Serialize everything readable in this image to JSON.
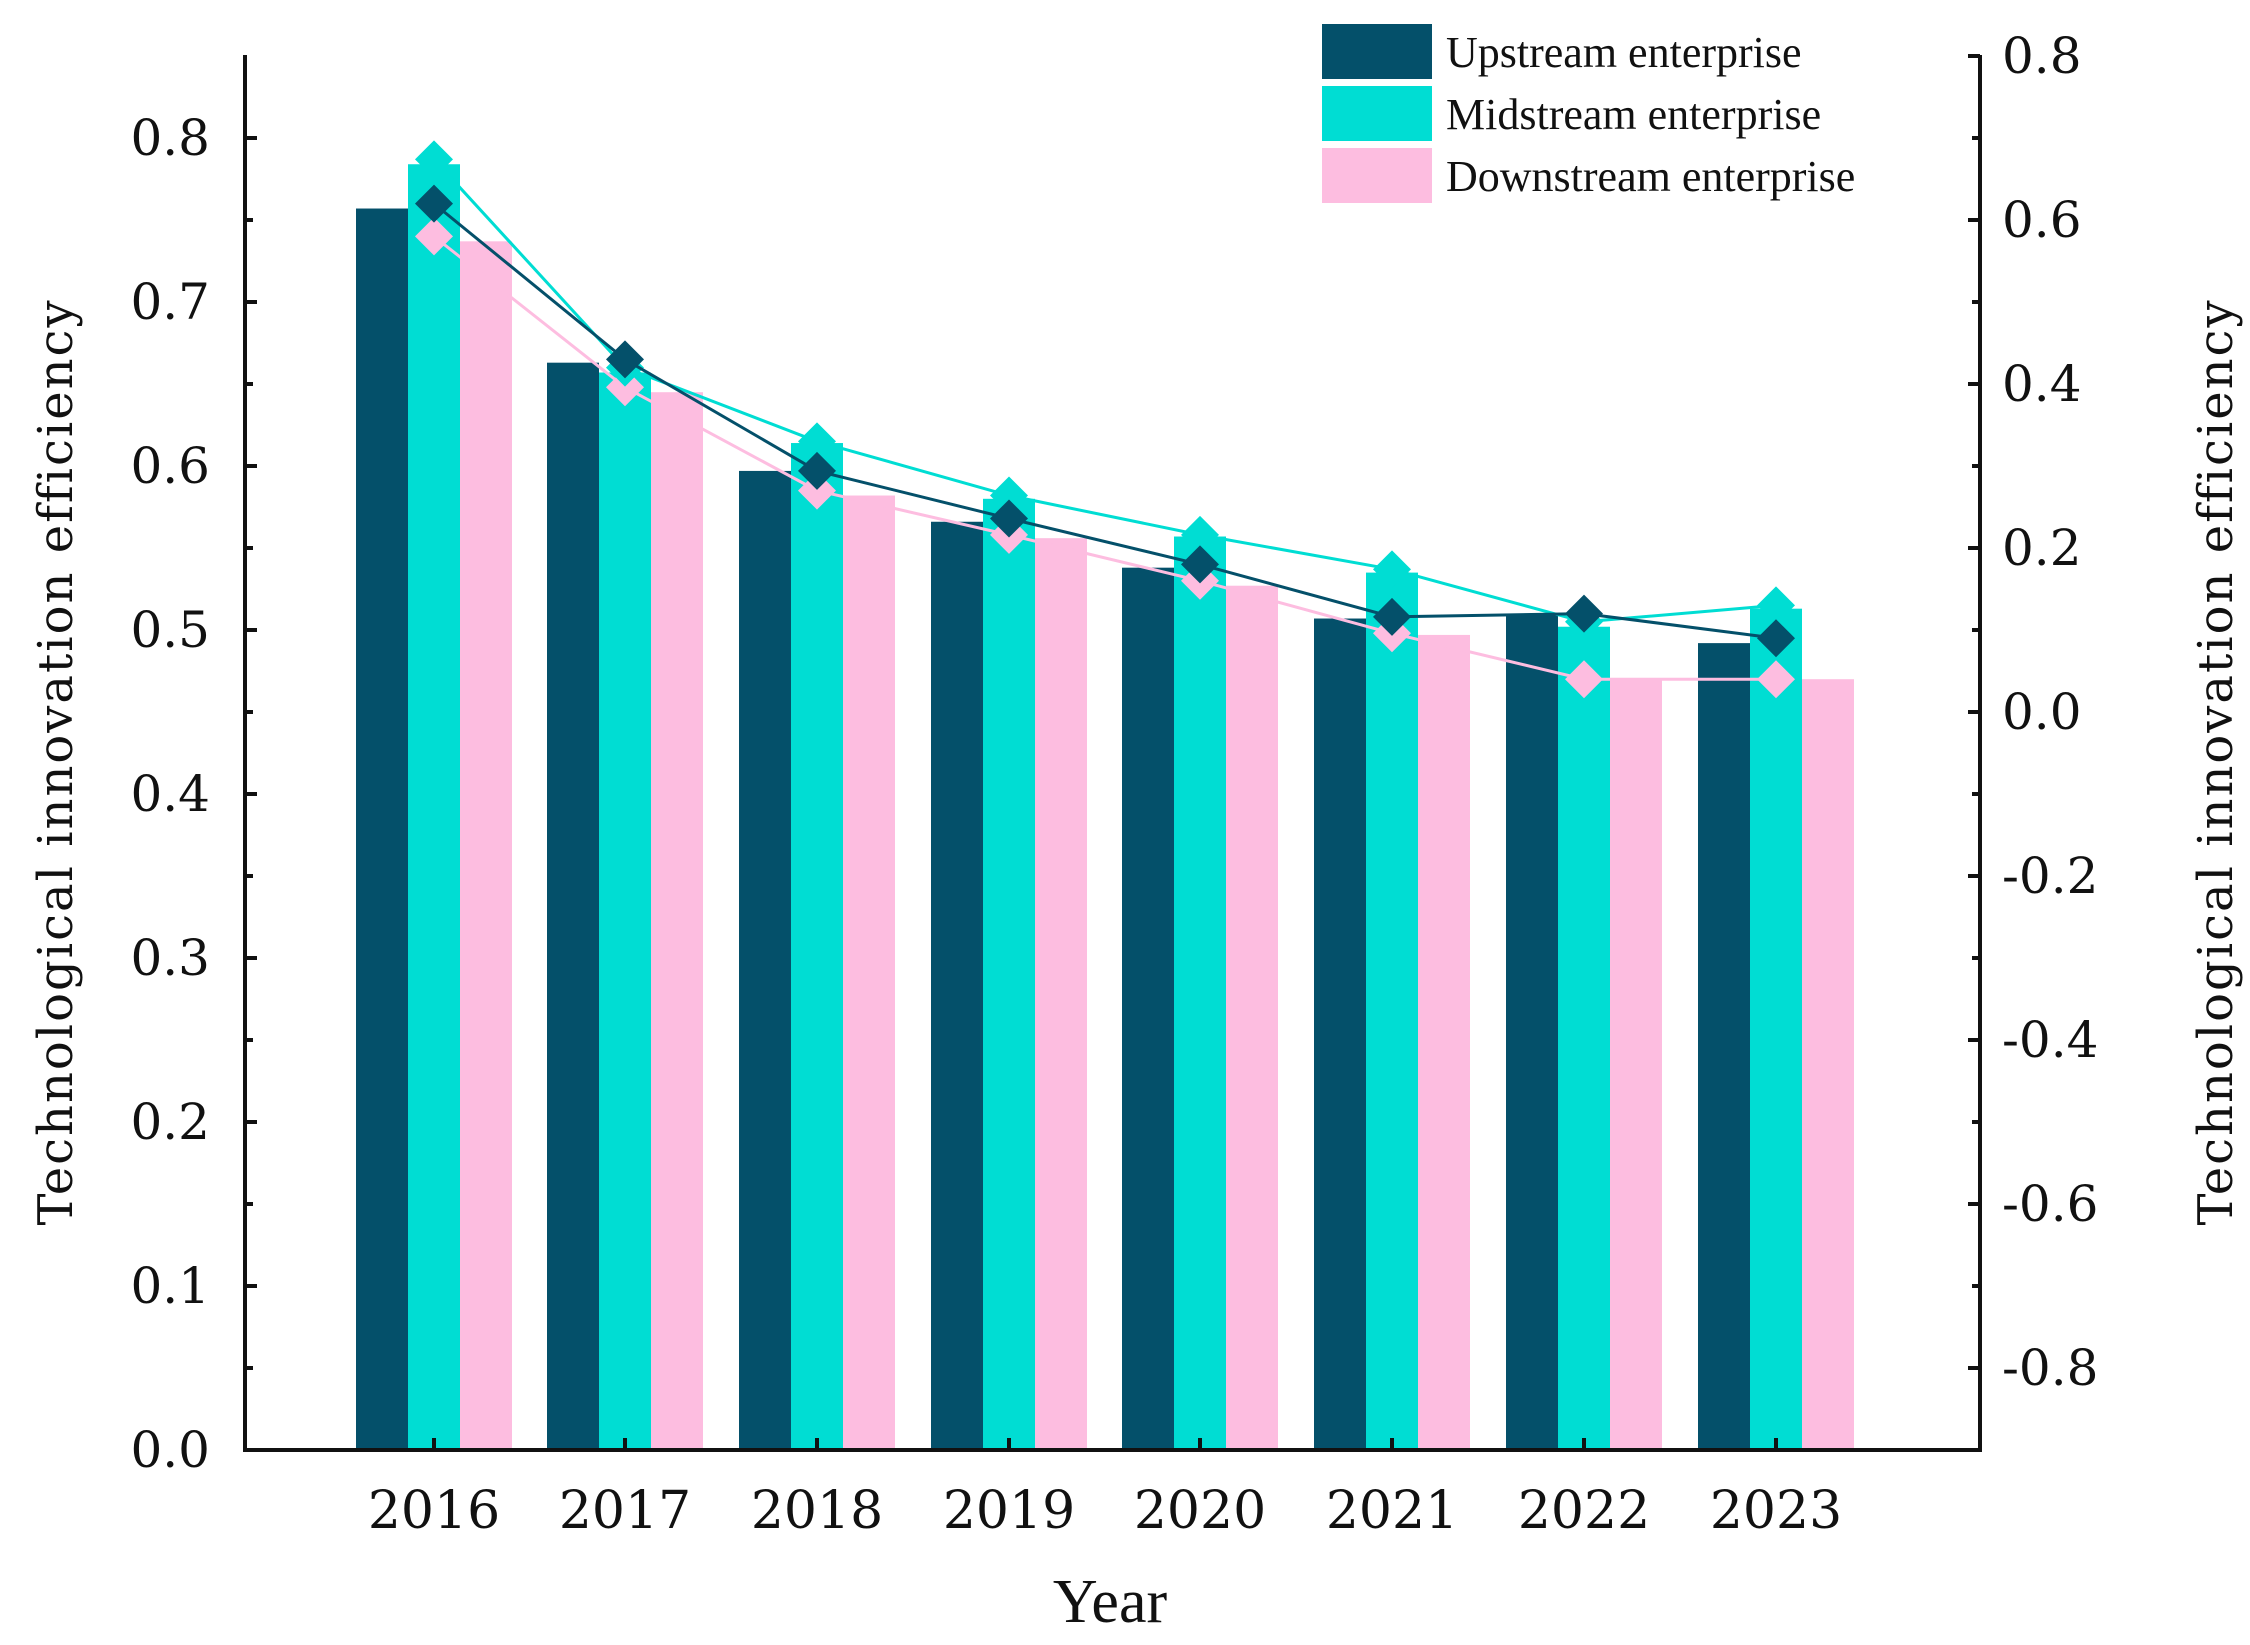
{
  "chart_data": {
    "type": "bar+line",
    "title": "",
    "xlabel": "Year",
    "ylabel_left": "Technological innovation efficiency",
    "ylabel_right": "Technological innovation efficiency",
    "categories": [
      "2016",
      "2017",
      "2018",
      "2019",
      "2020",
      "2021",
      "2022",
      "2023"
    ],
    "ylim_left": [
      0,
      0.85
    ],
    "yticks_left": [
      "0.0",
      "0.1",
      "0.2",
      "0.3",
      "0.4",
      "0.5",
      "0.6",
      "0.7",
      "0.8"
    ],
    "ylim_right": [
      -0.9,
      0.8
    ],
    "yticks_right": [
      "-0.8",
      "-0.6",
      "-0.4",
      "-0.2",
      "0.0",
      "0.2",
      "0.4",
      "0.6",
      "0.8"
    ],
    "series": [
      {
        "name": "Upstream enterprise",
        "color": "#04506a",
        "bar_values": [
          0.757,
          0.663,
          0.597,
          0.566,
          0.538,
          0.507,
          0.509,
          0.492
        ],
        "line_values": [
          0.76,
          0.665,
          0.597,
          0.568,
          0.54,
          0.508,
          0.51,
          0.495
        ]
      },
      {
        "name": "Midstream enterprise",
        "color": "#00ddd3",
        "bar_values": [
          0.784,
          0.657,
          0.614,
          0.58,
          0.557,
          0.535,
          0.502,
          0.513
        ],
        "line_values": [
          0.787,
          0.66,
          0.615,
          0.582,
          0.558,
          0.537,
          0.505,
          0.515
        ]
      },
      {
        "name": "Downstream enterprise",
        "color": "#fdbde0",
        "bar_values": [
          0.737,
          0.645,
          0.582,
          0.556,
          0.527,
          0.497,
          0.47,
          0.47
        ],
        "line_values": [
          0.74,
          0.648,
          0.585,
          0.558,
          0.53,
          0.498,
          0.47,
          0.47
        ]
      }
    ],
    "legend_position": "top-right"
  }
}
